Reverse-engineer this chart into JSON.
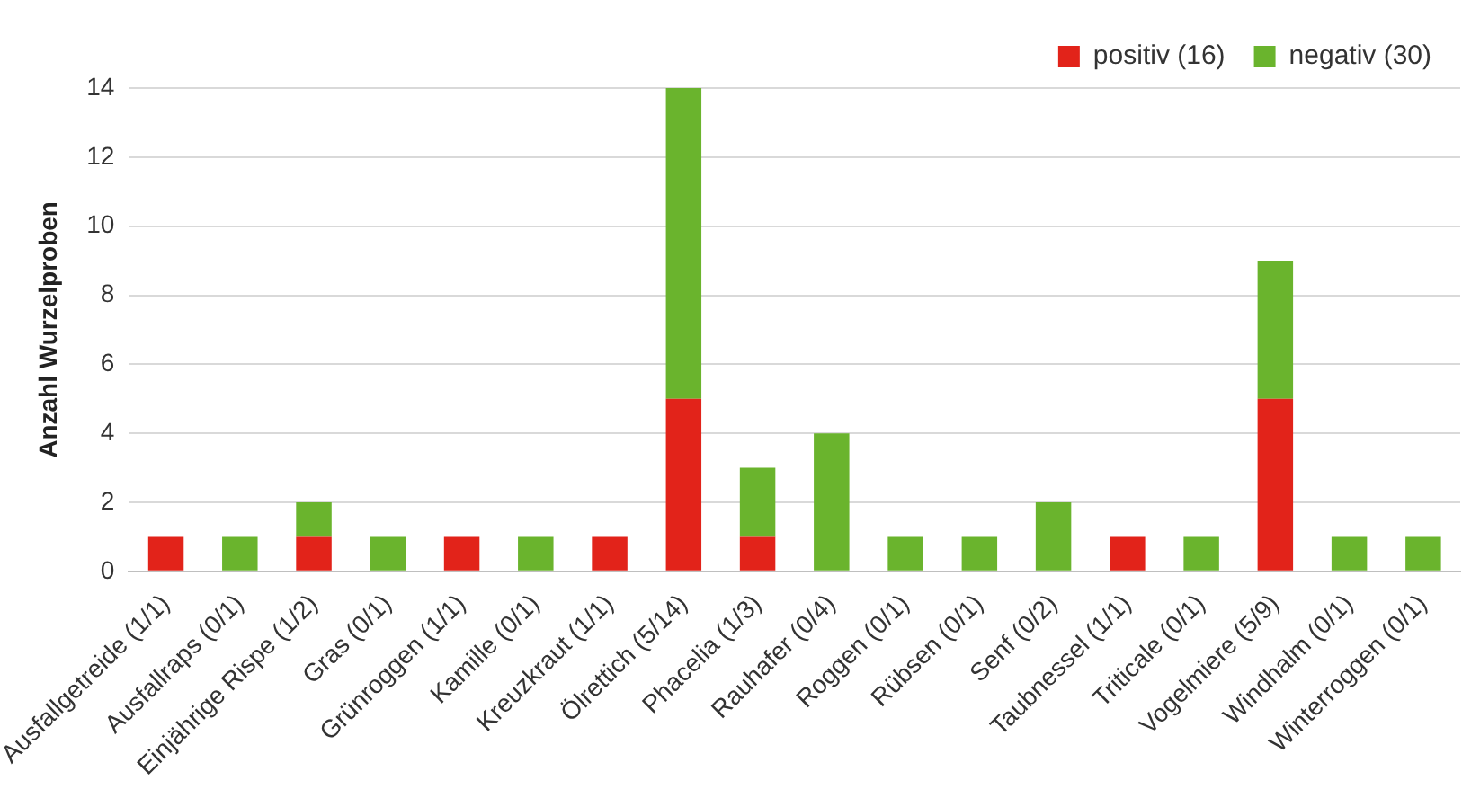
{
  "chart_data": {
    "type": "bar",
    "stacked": true,
    "ylabel": "Anzahl Wurzelproben",
    "categories": [
      "Ausfallgetreide (1/1)",
      "Ausfallraps (0/1)",
      "Einjährige Rispe (1/2)",
      "Gras (0/1)",
      "Grünroggen (1/1)",
      "Kamille (0/1)",
      "Kreuzkraut (1/1)",
      "Ölrettich (5/14)",
      "Phacelia (1/3)",
      "Rauhafer (0/4)",
      "Roggen (0/1)",
      "Rübsen (0/1)",
      "Senf (0/2)",
      "Taubnessel (1/1)",
      "Triticale (0/1)",
      "Vogelmiere (5/9)",
      "Windhalm (0/1)",
      "Winterroggen (0/1)"
    ],
    "series": [
      {
        "name": "positiv (16)",
        "color": "#e2231a",
        "values": [
          1,
          0,
          1,
          0,
          1,
          0,
          1,
          5,
          1,
          0,
          0,
          0,
          0,
          1,
          0,
          5,
          0,
          0
        ]
      },
      {
        "name": "negativ (30)",
        "color": "#6ab42d",
        "values": [
          0,
          1,
          1,
          1,
          0,
          1,
          0,
          9,
          2,
          4,
          1,
          1,
          2,
          0,
          1,
          4,
          1,
          1
        ]
      }
    ],
    "ylim": [
      0,
      14
    ],
    "yticks": [
      0,
      2,
      4,
      6,
      8,
      10,
      12,
      14
    ],
    "grid": "y",
    "legend": "top right"
  }
}
